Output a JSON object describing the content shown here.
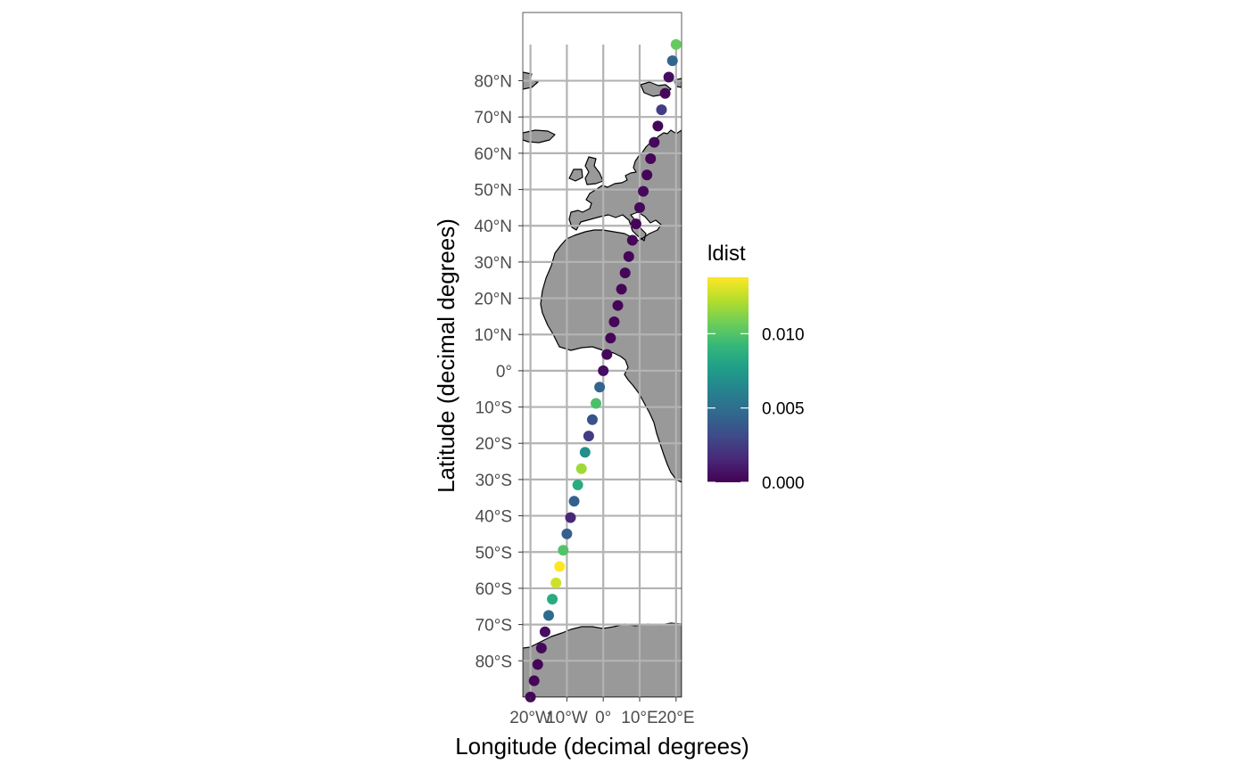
{
  "chart_data": {
    "type": "scatter",
    "title": "",
    "xlabel": "Longitude (decimal degrees)",
    "ylabel": "Latitude (decimal degrees)",
    "xlim": [
      -22,
      22
    ],
    "ylim": [
      -90,
      99
    ],
    "grid": true,
    "legend_position": "right",
    "x_ticks": [
      {
        "value": -20,
        "label": "20°W"
      },
      {
        "value": -10,
        "label": "10°W"
      },
      {
        "value": 0,
        "label": "0°"
      },
      {
        "value": 10,
        "label": "10°E"
      },
      {
        "value": 20,
        "label": "20°E"
      }
    ],
    "y_ticks": [
      {
        "value": 80,
        "label": "80°N"
      },
      {
        "value": 70,
        "label": "70°N"
      },
      {
        "value": 60,
        "label": "60°N"
      },
      {
        "value": 50,
        "label": "50°N"
      },
      {
        "value": 40,
        "label": "40°N"
      },
      {
        "value": 30,
        "label": "30°N"
      },
      {
        "value": 20,
        "label": "20°N"
      },
      {
        "value": 10,
        "label": "10°N"
      },
      {
        "value": 0,
        "label": "0°"
      },
      {
        "value": -10,
        "label": "10°S"
      },
      {
        "value": -20,
        "label": "20°S"
      },
      {
        "value": -30,
        "label": "30°S"
      },
      {
        "value": -40,
        "label": "40°S"
      },
      {
        "value": -50,
        "label": "50°S"
      },
      {
        "value": -60,
        "label": "60°S"
      },
      {
        "value": -70,
        "label": "70°S"
      },
      {
        "value": -80,
        "label": "80°S"
      }
    ],
    "color_legend": {
      "title": "ldist",
      "min": 0.0,
      "max": 0.0138,
      "breaks": [
        {
          "value": 0.0,
          "label": "0.000"
        },
        {
          "value": 0.005,
          "label": "0.005"
        },
        {
          "value": 0.01,
          "label": "0.010"
        }
      ],
      "palette": [
        "#440154",
        "#482878",
        "#3e4a89",
        "#31688e",
        "#26828e",
        "#1f9e89",
        "#35b779",
        "#6ece58",
        "#b5de2b",
        "#fde725"
      ]
    },
    "points": [
      {
        "lon": 20.0,
        "lat": 90.0,
        "ldist": 0.0105
      },
      {
        "lon": 19.0,
        "lat": 85.5,
        "ldist": 0.0045
      },
      {
        "lon": 18.0,
        "lat": 81.0,
        "ldist": 0.0005
      },
      {
        "lon": 17.0,
        "lat": 76.5,
        "ldist": 0.0002
      },
      {
        "lon": 16.0,
        "lat": 72.0,
        "ldist": 0.0025
      },
      {
        "lon": 15.0,
        "lat": 67.5,
        "ldist": 0.0002
      },
      {
        "lon": 14.0,
        "lat": 63.0,
        "ldist": 0.0003
      },
      {
        "lon": 13.0,
        "lat": 58.5,
        "ldist": 0.0002
      },
      {
        "lon": 12.0,
        "lat": 54.0,
        "ldist": 0.0002
      },
      {
        "lon": 11.0,
        "lat": 49.5,
        "ldist": 0.0003
      },
      {
        "lon": 10.0,
        "lat": 45.0,
        "ldist": 0.0003
      },
      {
        "lon": 9.0,
        "lat": 40.5,
        "ldist": 0.0002
      },
      {
        "lon": 8.0,
        "lat": 36.0,
        "ldist": 0.0002
      },
      {
        "lon": 7.0,
        "lat": 31.5,
        "ldist": 0.0002
      },
      {
        "lon": 6.0,
        "lat": 27.0,
        "ldist": 0.0002
      },
      {
        "lon": 5.0,
        "lat": 22.5,
        "ldist": 0.0002
      },
      {
        "lon": 4.0,
        "lat": 18.0,
        "ldist": 0.0002
      },
      {
        "lon": 3.0,
        "lat": 13.5,
        "ldist": 0.0002
      },
      {
        "lon": 2.0,
        "lat": 9.0,
        "ldist": 0.0002
      },
      {
        "lon": 1.0,
        "lat": 4.5,
        "ldist": 0.0003
      },
      {
        "lon": 0.0,
        "lat": 0.0,
        "ldist": 0.0005
      },
      {
        "lon": -1.0,
        "lat": -4.5,
        "ldist": 0.0045
      },
      {
        "lon": -2.0,
        "lat": -9.0,
        "ldist": 0.0098
      },
      {
        "lon": -3.0,
        "lat": -13.5,
        "ldist": 0.0035
      },
      {
        "lon": -4.0,
        "lat": -18.0,
        "ldist": 0.0025
      },
      {
        "lon": -5.0,
        "lat": -22.5,
        "ldist": 0.0068
      },
      {
        "lon": -6.0,
        "lat": -27.0,
        "ldist": 0.0118
      },
      {
        "lon": -7.0,
        "lat": -31.5,
        "ldist": 0.0085
      },
      {
        "lon": -8.0,
        "lat": -36.0,
        "ldist": 0.0042
      },
      {
        "lon": -9.0,
        "lat": -40.5,
        "ldist": 0.0015
      },
      {
        "lon": -10.0,
        "lat": -45.0,
        "ldist": 0.0042
      },
      {
        "lon": -11.0,
        "lat": -49.5,
        "ldist": 0.01
      },
      {
        "lon": -12.0,
        "lat": -54.0,
        "ldist": 0.0138
      },
      {
        "lon": -13.0,
        "lat": -58.5,
        "ldist": 0.0128
      },
      {
        "lon": -14.0,
        "lat": -63.0,
        "ldist": 0.0085
      },
      {
        "lon": -15.0,
        "lat": -67.5,
        "ldist": 0.0048
      },
      {
        "lon": -16.0,
        "lat": -72.0,
        "ldist": 0.0005
      },
      {
        "lon": -17.0,
        "lat": -76.5,
        "ldist": 0.0003
      },
      {
        "lon": -18.0,
        "lat": -81.0,
        "ldist": 0.0002
      },
      {
        "lon": -19.0,
        "lat": -85.5,
        "ldist": 0.0002
      },
      {
        "lon": -20.0,
        "lat": -90.0,
        "ldist": 0.0002
      }
    ],
    "land_color": "#999999"
  }
}
